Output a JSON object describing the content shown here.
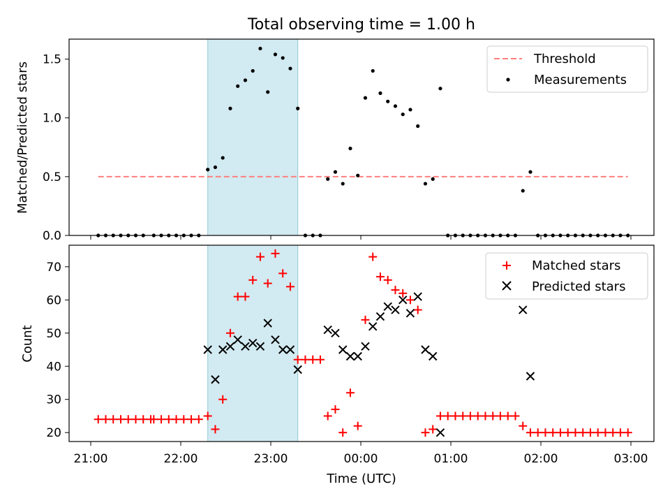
{
  "title": "Total observing time = 1.00 h",
  "chart_data": [
    {
      "type": "scatter",
      "ylabel": "Matched/Predicted stars",
      "ylim": [
        0,
        1.67
      ],
      "yticks": [
        "0.0",
        "0.5",
        "1.0",
        "1.5"
      ],
      "ytick_values": [
        0,
        0.5,
        1.0,
        1.5
      ],
      "legend_position": "top-right",
      "threshold": {
        "name": "Threshold",
        "value": 0.5,
        "x_range": [
          "21:05",
          "02:58"
        ],
        "color": "#ff7f7f"
      },
      "highlight_band": {
        "x_range": [
          "22:18",
          "23:18"
        ],
        "color": "#add8e6"
      },
      "series": [
        {
          "name": "Measurements",
          "color": "#000000",
          "points": [
            [
              "21:05",
              0
            ],
            [
              "21:10",
              0
            ],
            [
              "21:15",
              0
            ],
            [
              "21:20",
              0
            ],
            [
              "21:25",
              0
            ],
            [
              "21:30",
              0
            ],
            [
              "21:35",
              0
            ],
            [
              "21:42",
              0
            ],
            [
              "21:47",
              0
            ],
            [
              "21:52",
              0
            ],
            [
              "21:57",
              0
            ],
            [
              "22:02",
              0
            ],
            [
              "22:07",
              0
            ],
            [
              "22:12",
              0
            ],
            [
              "22:18",
              0.56
            ],
            [
              "22:23",
              0.58
            ],
            [
              "22:28",
              0.66
            ],
            [
              "22:33",
              1.08
            ],
            [
              "22:38",
              1.27
            ],
            [
              "22:43",
              1.32
            ],
            [
              "22:48",
              1.4
            ],
            [
              "22:53",
              1.59
            ],
            [
              "22:58",
              1.22
            ],
            [
              "23:03",
              1.54
            ],
            [
              "23:08",
              1.51
            ],
            [
              "23:13",
              1.42
            ],
            [
              "23:18",
              1.08
            ],
            [
              "23:23",
              0
            ],
            [
              "23:28",
              0
            ],
            [
              "23:33",
              0
            ],
            [
              "23:38",
              0.48
            ],
            [
              "23:43",
              0.54
            ],
            [
              "23:48",
              0.44
            ],
            [
              "23:53",
              0.74
            ],
            [
              "23:58",
              0.51
            ],
            [
              "00:03",
              1.17
            ],
            [
              "00:08",
              1.4
            ],
            [
              "00:13",
              1.21
            ],
            [
              "00:18",
              1.14
            ],
            [
              "00:23",
              1.1
            ],
            [
              "00:28",
              1.03
            ],
            [
              "00:33",
              1.07
            ],
            [
              "00:38",
              0.93
            ],
            [
              "00:43",
              0.44
            ],
            [
              "00:48",
              0.48
            ],
            [
              "00:53",
              1.25
            ],
            [
              "00:58",
              0
            ],
            [
              "01:03",
              0
            ],
            [
              "01:08",
              0
            ],
            [
              "01:13",
              0
            ],
            [
              "01:18",
              0
            ],
            [
              "01:23",
              0
            ],
            [
              "01:28",
              0
            ],
            [
              "01:33",
              0
            ],
            [
              "01:38",
              0
            ],
            [
              "01:43",
              0
            ],
            [
              "01:48",
              0.38
            ],
            [
              "01:53",
              0.54
            ],
            [
              "01:58",
              0
            ],
            [
              "02:03",
              0
            ],
            [
              "02:08",
              0
            ],
            [
              "02:13",
              0
            ],
            [
              "02:18",
              0
            ],
            [
              "02:23",
              0
            ],
            [
              "02:28",
              0
            ],
            [
              "02:33",
              0
            ],
            [
              "02:38",
              0
            ],
            [
              "02:43",
              0
            ],
            [
              "02:48",
              0
            ],
            [
              "02:53",
              0
            ],
            [
              "02:58",
              0
            ]
          ]
        }
      ]
    },
    {
      "type": "scatter",
      "xlabel": "Time (UTC)",
      "ylabel": "Count",
      "ylim": [
        17.3,
        76.5
      ],
      "yticks": [
        "20",
        "30",
        "40",
        "50",
        "60",
        "70"
      ],
      "ytick_values": [
        20,
        30,
        40,
        50,
        60,
        70
      ],
      "xticks": [
        "21:00",
        "22:00",
        "23:00",
        "00:00",
        "01:00",
        "02:00",
        "03:00"
      ],
      "legend_position": "top-right",
      "highlight_band": {
        "x_range": [
          "22:18",
          "23:18"
        ],
        "color": "#add8e6"
      },
      "series": [
        {
          "name": "Matched stars",
          "marker": "plus",
          "color": "#ff0000",
          "points": [
            [
              "21:05",
              24
            ],
            [
              "21:10",
              24
            ],
            [
              "21:15",
              24
            ],
            [
              "21:20",
              24
            ],
            [
              "21:25",
              24
            ],
            [
              "21:30",
              24
            ],
            [
              "21:35",
              24
            ],
            [
              "21:40",
              24
            ],
            [
              "21:42",
              24
            ],
            [
              "21:47",
              24
            ],
            [
              "21:52",
              24
            ],
            [
              "21:57",
              24
            ],
            [
              "22:02",
              24
            ],
            [
              "22:07",
              24
            ],
            [
              "22:12",
              24
            ],
            [
              "22:18",
              25
            ],
            [
              "22:23",
              21
            ],
            [
              "22:28",
              30
            ],
            [
              "22:33",
              50
            ],
            [
              "22:38",
              61
            ],
            [
              "22:43",
              61
            ],
            [
              "22:48",
              66
            ],
            [
              "22:53",
              73
            ],
            [
              "22:58",
              65
            ],
            [
              "23:03",
              74
            ],
            [
              "23:08",
              68
            ],
            [
              "23:13",
              64
            ],
            [
              "23:18",
              42
            ],
            [
              "23:23",
              42
            ],
            [
              "23:28",
              42
            ],
            [
              "23:33",
              42
            ],
            [
              "23:38",
              25
            ],
            [
              "23:43",
              27
            ],
            [
              "23:48",
              20
            ],
            [
              "23:53",
              32
            ],
            [
              "23:58",
              22
            ],
            [
              "00:03",
              54
            ],
            [
              "00:08",
              73
            ],
            [
              "00:13",
              67
            ],
            [
              "00:18",
              66
            ],
            [
              "00:23",
              63
            ],
            [
              "00:28",
              62
            ],
            [
              "00:33",
              60
            ],
            [
              "00:38",
              57
            ],
            [
              "00:43",
              20
            ],
            [
              "00:48",
              21
            ],
            [
              "00:53",
              25
            ],
            [
              "00:58",
              25
            ],
            [
              "01:03",
              25
            ],
            [
              "01:08",
              25
            ],
            [
              "01:13",
              25
            ],
            [
              "01:18",
              25
            ],
            [
              "01:23",
              25
            ],
            [
              "01:28",
              25
            ],
            [
              "01:33",
              25
            ],
            [
              "01:38",
              25
            ],
            [
              "01:43",
              25
            ],
            [
              "01:48",
              22
            ],
            [
              "01:53",
              20
            ],
            [
              "01:58",
              20
            ],
            [
              "02:03",
              20
            ],
            [
              "02:08",
              20
            ],
            [
              "02:13",
              20
            ],
            [
              "02:18",
              20
            ],
            [
              "02:23",
              20
            ],
            [
              "02:28",
              20
            ],
            [
              "02:33",
              20
            ],
            [
              "02:38",
              20
            ],
            [
              "02:43",
              20
            ],
            [
              "02:48",
              20
            ],
            [
              "02:53",
              20
            ],
            [
              "02:58",
              20
            ]
          ]
        },
        {
          "name": "Predicted stars",
          "marker": "x",
          "color": "#000000",
          "points": [
            [
              "22:18",
              45
            ],
            [
              "22:23",
              36
            ],
            [
              "22:28",
              45
            ],
            [
              "22:33",
              46
            ],
            [
              "22:38",
              48
            ],
            [
              "22:43",
              46
            ],
            [
              "22:48",
              47
            ],
            [
              "22:53",
              46
            ],
            [
              "22:58",
              53
            ],
            [
              "23:03",
              48
            ],
            [
              "23:08",
              45
            ],
            [
              "23:13",
              45
            ],
            [
              "23:18",
              39
            ],
            [
              "23:38",
              51
            ],
            [
              "23:43",
              50
            ],
            [
              "23:48",
              45
            ],
            [
              "23:53",
              43
            ],
            [
              "23:58",
              43
            ],
            [
              "00:03",
              46
            ],
            [
              "00:08",
              52
            ],
            [
              "00:13",
              55
            ],
            [
              "00:18",
              58
            ],
            [
              "00:23",
              57
            ],
            [
              "00:28",
              60
            ],
            [
              "00:33",
              56
            ],
            [
              "00:38",
              61
            ],
            [
              "00:43",
              45
            ],
            [
              "00:48",
              43
            ],
            [
              "00:53",
              20
            ],
            [
              "01:48",
              57
            ],
            [
              "01:53",
              37
            ]
          ]
        }
      ]
    }
  ]
}
